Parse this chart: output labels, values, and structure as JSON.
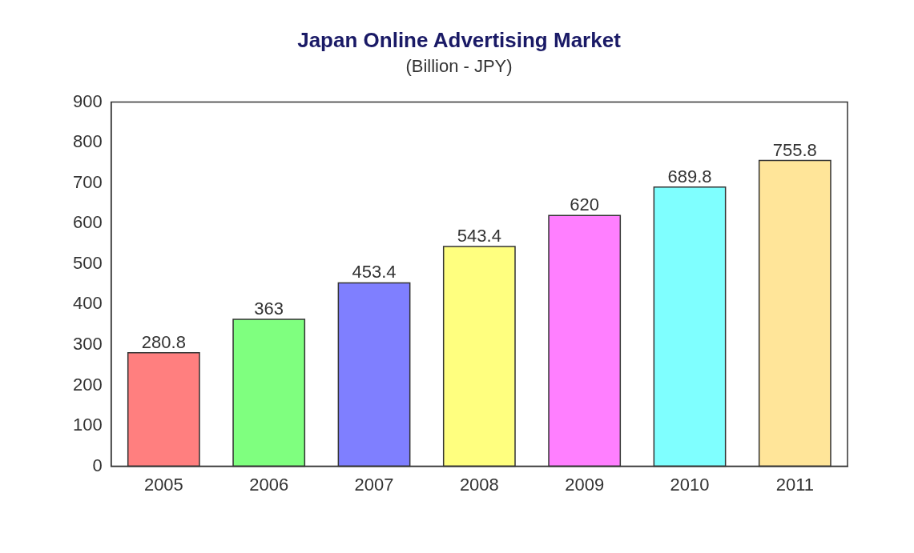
{
  "chart_data": {
    "type": "bar",
    "title": "Japan Online Advertising Market",
    "subtitle": "(Billion - JPY)",
    "categories": [
      "2005",
      "2006",
      "2007",
      "2008",
      "2009",
      "2010",
      "2011"
    ],
    "values": [
      280.8,
      363,
      453.4,
      543.4,
      620,
      689.8,
      755.8
    ],
    "colors": [
      "#ff7f7f",
      "#7fff7f",
      "#7f7fff",
      "#ffff7f",
      "#ff7fff",
      "#7fffff",
      "#ffe599"
    ],
    "ylim": [
      0,
      900
    ],
    "yticks": [
      0,
      100,
      200,
      300,
      400,
      500,
      600,
      700,
      800,
      900
    ],
    "data_labels": true,
    "grid": false,
    "legend": false
  }
}
